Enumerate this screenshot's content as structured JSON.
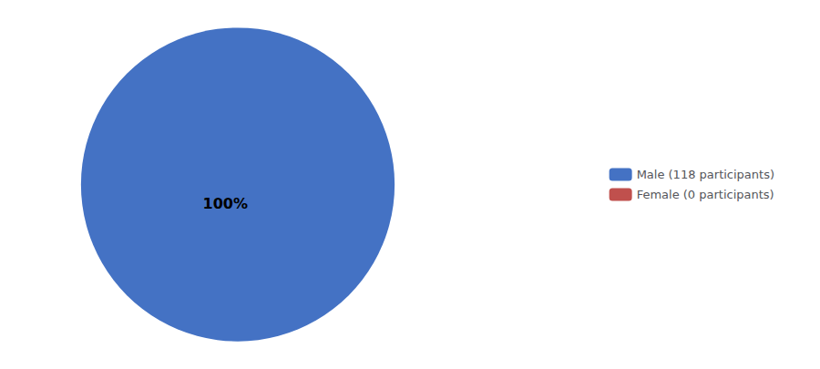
{
  "chart_data": {
    "type": "pie",
    "categories": [
      "Male (118 participants)",
      "Female (0 participants)"
    ],
    "values": [
      100,
      0.0001
    ],
    "colors": [
      "#4472C4",
      "#C0504D"
    ],
    "annotations": [
      "100%"
    ],
    "legend": "right"
  }
}
